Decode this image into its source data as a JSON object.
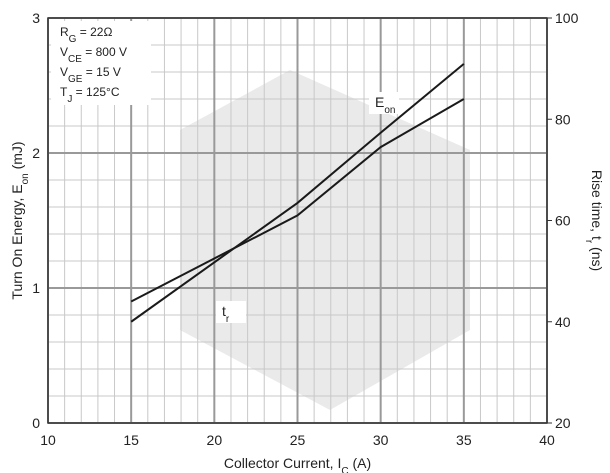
{
  "chart_data": {
    "type": "line",
    "x_label": {
      "text": "Collector Current, I",
      "sub": "C",
      "after": " (A)"
    },
    "y_label": {
      "text": "Turn On Energy, E",
      "sub": "on",
      "after": " (mJ)"
    },
    "y2_label": {
      "text": "Rise time, t",
      "sub": "r",
      "after": " (ns)"
    },
    "annotations": [
      {
        "text": "R",
        "sub": "G",
        "after": " = 22Ω"
      },
      {
        "text": "V",
        "sub": "CE",
        "after": " = 800 V"
      },
      {
        "text": "V",
        "sub": "GE",
        "after": " = 15 V"
      },
      {
        "text": "T",
        "sub": "J",
        "after": " = 125°C"
      }
    ],
    "x": [
      15,
      25,
      30,
      35
    ],
    "series": [
      {
        "name": "E",
        "name_sub": "on",
        "color": "#1a1a1a",
        "values": [
          0.75,
          1.63,
          2.15,
          2.66
        ]
      },
      {
        "name": "t",
        "name_sub": "r",
        "color": "#1a1a1a",
        "axis": "y2",
        "values": [
          44,
          61,
          74.5,
          84
        ]
      }
    ],
    "xlim": [
      10,
      40
    ],
    "xticks": [
      10,
      15,
      20,
      25,
      30,
      35,
      40
    ],
    "x_minor_ticks": [
      11,
      12,
      13,
      14,
      16,
      17,
      18,
      19,
      21,
      22,
      23,
      24,
      26,
      27,
      28,
      29,
      31,
      32,
      33,
      34,
      36,
      37,
      38,
      39
    ],
    "ylim": [
      0,
      3
    ],
    "yticks": [
      0,
      1,
      2,
      3
    ],
    "y_minor_ticks": [
      0.2,
      0.4,
      0.6,
      0.8,
      1.2,
      1.4,
      1.6,
      1.8,
      2.2,
      2.4,
      2.6,
      2.8
    ],
    "y2lim": [
      20,
      100
    ],
    "y2ticks": [
      20,
      40,
      60,
      80,
      100
    ],
    "grid": true
  }
}
